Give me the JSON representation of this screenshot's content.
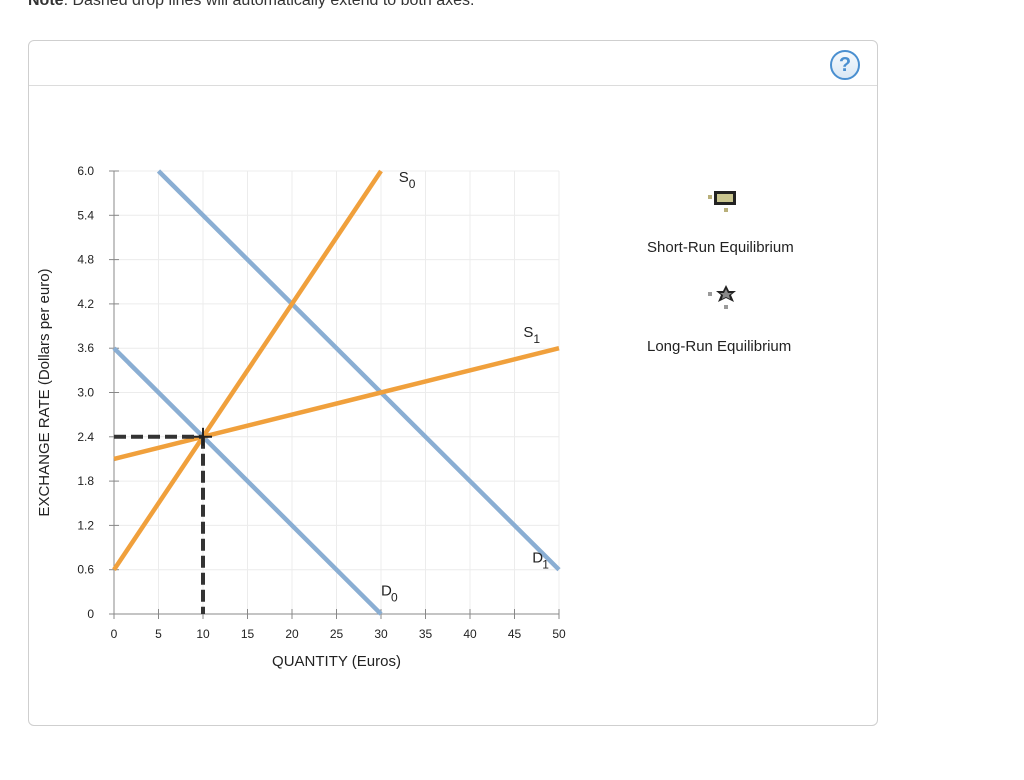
{
  "note": {
    "bold": "Note",
    "text": ": Dashed drop lines will automatically extend to both axes."
  },
  "help_button": {
    "label": "?",
    "icon": "question-mark-icon"
  },
  "legend": {
    "short_run": {
      "label": "Short-Run Equilibrium",
      "icon": "square-marker-icon",
      "color": "#b9b07a"
    },
    "long_run": {
      "label": "Long-Run Equilibrium",
      "icon": "star-marker-icon",
      "color": "#8a8a8a"
    }
  },
  "chart_data": {
    "type": "line",
    "xlabel": "QUANTITY (Euros)",
    "ylabel": "EXCHANGE RATE (Dollars per euro)",
    "xlim": [
      0,
      50
    ],
    "ylim": [
      0,
      6.0
    ],
    "xticks": [
      0,
      5,
      10,
      15,
      20,
      25,
      30,
      35,
      40,
      45,
      50
    ],
    "yticks": [
      0,
      0.6,
      1.2,
      1.8,
      2.4,
      3.0,
      3.6,
      4.2,
      4.8,
      5.4,
      6.0
    ],
    "ytick_labels": [
      "0",
      "0.6",
      "1.2",
      "1.8",
      "2.4",
      "3.0",
      "3.6",
      "4.2",
      "4.8",
      "5.4",
      "6.0"
    ],
    "grid": true,
    "series": [
      {
        "name": "D0",
        "label_main": "D",
        "label_sub": "0",
        "color": "#8aaed3",
        "x": [
          0,
          30
        ],
        "y": [
          3.6,
          0
        ],
        "label_pos": [
          30,
          0.25
        ]
      },
      {
        "name": "D1",
        "label_main": "D",
        "label_sub": "1",
        "color": "#8aaed3",
        "x": [
          5,
          50
        ],
        "y": [
          6.0,
          0.6
        ],
        "label_pos": [
          47,
          0.7
        ]
      },
      {
        "name": "S0",
        "label_main": "S",
        "label_sub": "0",
        "color": "#f0a03c",
        "x": [
          0,
          30
        ],
        "y": [
          0.6,
          6.0
        ],
        "label_pos": [
          32,
          5.85
        ]
      },
      {
        "name": "S1",
        "label_main": "S",
        "label_sub": "1",
        "color": "#f0a03c",
        "x": [
          0,
          50
        ],
        "y": [
          2.1,
          3.6
        ],
        "label_pos": [
          46,
          3.75
        ]
      }
    ],
    "equilibrium_point": {
      "x": 10,
      "y": 2.4
    },
    "drop_lines": {
      "style": "dashed",
      "color": "#333333"
    }
  }
}
